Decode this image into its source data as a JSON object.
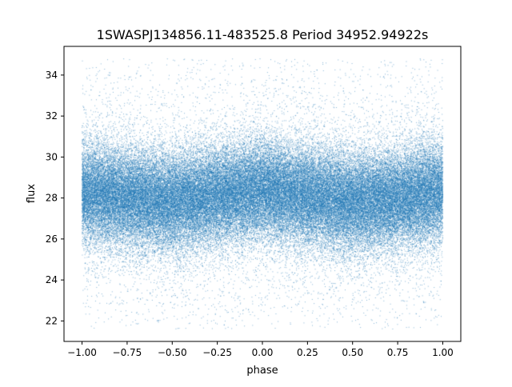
{
  "chart_data": {
    "type": "scatter",
    "title": "1SWASPJ134856.11-483525.8 Period 34952.94922s",
    "xlabel": "phase",
    "ylabel": "flux",
    "xlim": [
      -1.1,
      1.1
    ],
    "ylim": [
      21.0,
      35.4
    ],
    "x_ticks": [
      -1.0,
      -0.75,
      -0.5,
      -0.25,
      0.0,
      0.25,
      0.5,
      0.75,
      1.0
    ],
    "x_tick_labels": [
      "−1.00",
      "−0.75",
      "−0.50",
      "−0.25",
      "0.00",
      "0.25",
      "0.50",
      "0.75",
      "1.00"
    ],
    "y_ticks": [
      22,
      24,
      26,
      28,
      30,
      32,
      34
    ],
    "y_tick_labels": [
      "22",
      "24",
      "26",
      "28",
      "30",
      "32",
      "34"
    ],
    "grid": false,
    "legend": "none",
    "marker_color": "#1f77b4",
    "series": [
      {
        "values_summary": "dense cloud of points, phase -1.00 to 1.00 (folded twice)",
        "median_flux_by_phase": {
          "x": [
            -1.0,
            -0.75,
            -0.5,
            -0.25,
            0.0,
            0.25,
            0.5,
            0.75,
            1.0
          ],
          "y": [
            28.3,
            28.0,
            27.8,
            28.1,
            28.4,
            28.1,
            27.8,
            28.0,
            28.3
          ]
        },
        "core_spread_flux": 1.5,
        "outlier_range": [
          21.6,
          34.8
        ]
      }
    ]
  }
}
